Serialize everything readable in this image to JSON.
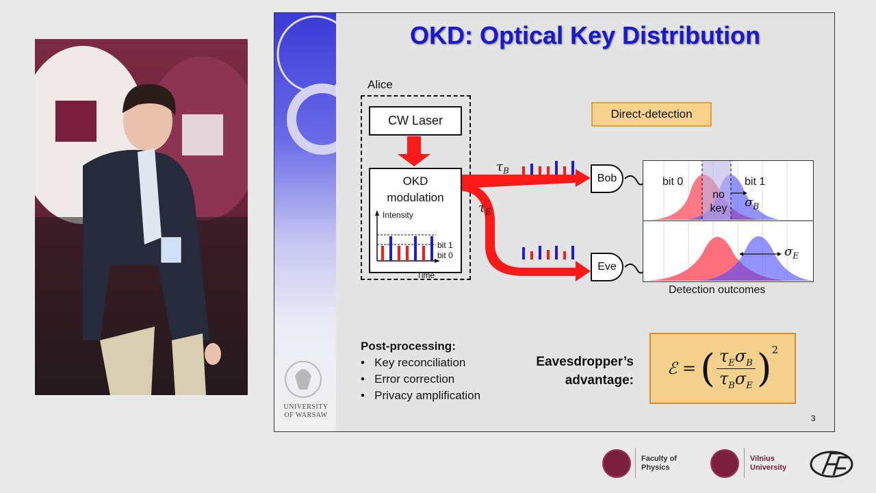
{
  "slide": {
    "title": "OKD: Optical Key Distribution",
    "alice_label": "Alice",
    "cw_laser": "CW Laser",
    "okd_modulation": [
      "OKD",
      "modulation"
    ],
    "inset": {
      "intensity": "Intensity",
      "time": "Time",
      "bit1": "bit 1",
      "bit0": "bit 0"
    },
    "tau_b": "τ",
    "tau_b_sub": "B",
    "tau_e": "τ",
    "tau_e_sub": "E",
    "direct_detection": "Direct-detection",
    "bob": "Bob",
    "eve": "Eve",
    "plot_top": {
      "bit0": "bit 0",
      "bit1": "bit 1",
      "no_key": [
        "no",
        "key"
      ],
      "sigma": "σ",
      "sigma_sub": "B"
    },
    "plot_bottom": {
      "sigma": "σ",
      "sigma_sub": "E"
    },
    "detection_outcomes": "Detection outcomes",
    "post_processing_title": "Post-processing:",
    "post_processing_items": [
      "Key reconciliation",
      "Error correction",
      "Privacy amplification"
    ],
    "eavesdropper_label": [
      "Eavesdropper’s",
      "advantage:"
    ],
    "formula": {
      "lhs": "ℰ =",
      "num": "τ",
      "num_sub1": "E",
      "num_s": "σ",
      "num_sub2": "B",
      "den": "τ",
      "den_sub1": "B",
      "den_s": "σ",
      "den_sub2": "E",
      "exp": "2"
    },
    "page_number": "3",
    "university": [
      "UNIVERSITY",
      "OF WARSAW"
    ]
  },
  "footer": {
    "faculty": [
      "Faculty of",
      "Physics"
    ],
    "vilnius": [
      "Vilnius",
      "University"
    ]
  },
  "colors": {
    "title": "#1a1acc",
    "red": "#ff1a1a",
    "blue": "#1a1ae6",
    "formula_bg": "#f4d28e",
    "vu": "#7a1f3d"
  }
}
